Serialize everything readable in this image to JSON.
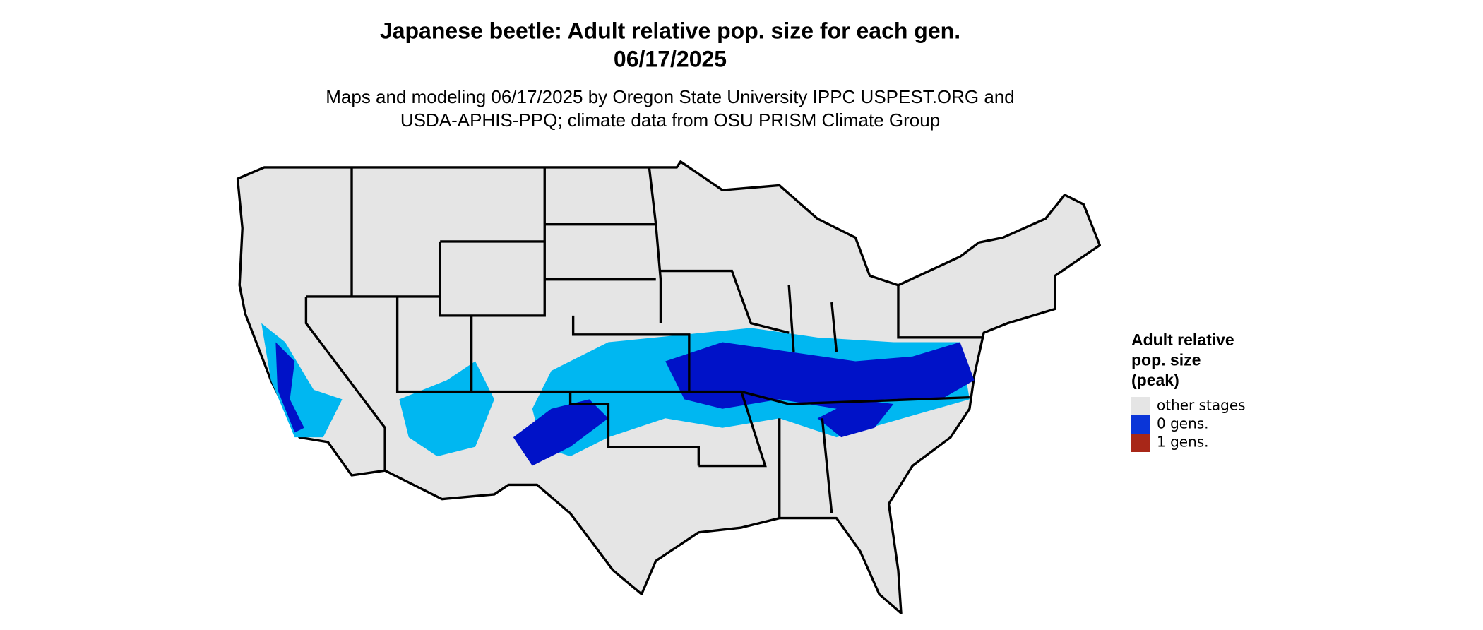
{
  "header": {
    "title": [
      "Japanese beetle: Adult relative pop. size for each gen.",
      "06/17/2025"
    ],
    "subtitle": [
      "Maps and modeling 06/17/2025 by Oregon State University IPPC USPEST.ORG and",
      "USDA-APHIS-PPQ; climate data from OSU PRISM Climate Group"
    ]
  },
  "legend": {
    "title": [
      "Adult relative",
      "pop. size",
      "(peak)"
    ],
    "items": [
      {
        "label": "other stages",
        "color": "#e5e5e5"
      },
      {
        "label": "0 gens.",
        "color": "#0a35d8"
      },
      {
        "label": "1 gens.",
        "color": "#a82718"
      }
    ]
  }
}
